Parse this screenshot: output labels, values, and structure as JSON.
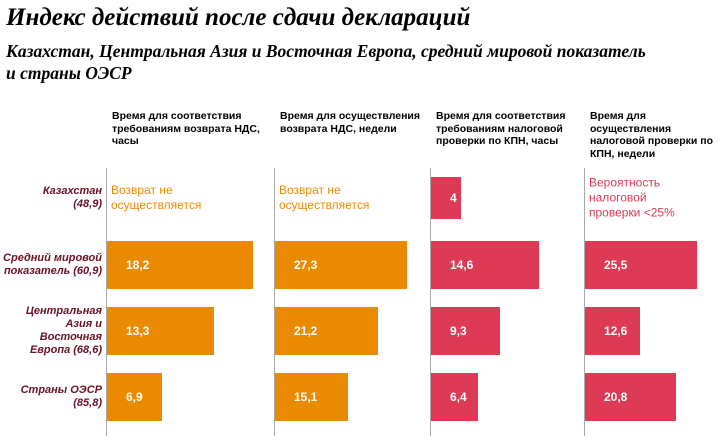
{
  "title": "Индекс действий после сдачи деклараций",
  "subtitle": "Казахстан, Центральная Азия и Восточная Европа, средний мировой показатель и страны ОЭСР",
  "colors": {
    "vat": "#ea8a00",
    "cit": "#dc3a55",
    "label": "#6b1226",
    "axis": "#a9a9a9"
  },
  "chart_data": {
    "type": "bar",
    "orientation": "horizontal",
    "categories": [
      "Казахстан (48,9)",
      "Средний мировой показатель (60,9)",
      "Центральная Азия и Восточная Европа (68,6)",
      "Страны ОЭСР (85,8)"
    ],
    "panels": [
      {
        "header": "Время для соответствия требованиям возврата НДС, часы",
        "color": "#ea8a00",
        "values": [
          null,
          18.2,
          13.3,
          6.9
        ],
        "labels": [
          "Возврат не осуществляется",
          "18,2",
          "13,3",
          "6,9"
        ],
        "max": 18.2
      },
      {
        "header": "Время для осуществления возврата НДС, недели",
        "color": "#ea8a00",
        "values": [
          null,
          27.3,
          21.2,
          15.1
        ],
        "labels": [
          "Возврат не осуществляется",
          "27,3",
          "21,2",
          "15,1"
        ],
        "max": 27.3
      },
      {
        "header": "Время для соответствия требованиям налоговой проверки по КПН, часы",
        "color": "#dc3a55",
        "values": [
          4,
          14.6,
          9.3,
          6.4
        ],
        "labels": [
          "4",
          "14,6",
          "9,3",
          "6,4"
        ],
        "max": 14.6
      },
      {
        "header": "Время для осуществления налоговой проверки по КПН, недели",
        "color": "#dc3a55",
        "values": [
          null,
          25.5,
          12.6,
          20.8
        ],
        "labels": [
          "Вероятность налоговой проверки <25%",
          "25,5",
          "12,6",
          "20,8"
        ],
        "max": 25.5
      }
    ]
  }
}
